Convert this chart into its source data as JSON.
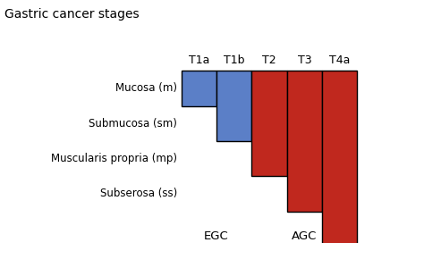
{
  "title": "Gastric cancer stages",
  "title_fontsize": 10,
  "layers": [
    "Mucosa (m)",
    "Submucosa (sm)",
    "Muscularis propria (mp)",
    "Subserosa (ss)"
  ],
  "stages": [
    "T1a",
    "T1b",
    "T2",
    "T3",
    "T4a"
  ],
  "stage_depths": [
    1,
    2,
    3,
    4,
    5
  ],
  "stage_colors": [
    "#5b7fc7",
    "#5b7fc7",
    "#c0281e",
    "#c0281e",
    "#c0281e"
  ],
  "egc_label": "EGC",
  "agc_label": "AGC",
  "egc_stages": [
    0,
    1
  ],
  "agc_stages": [
    2,
    3,
    4
  ],
  "background_color": "#ffffff",
  "border_color": "#000000",
  "layer_label_color": "#000000",
  "stage_label_color": "#000000",
  "group_label_color": "#000000"
}
